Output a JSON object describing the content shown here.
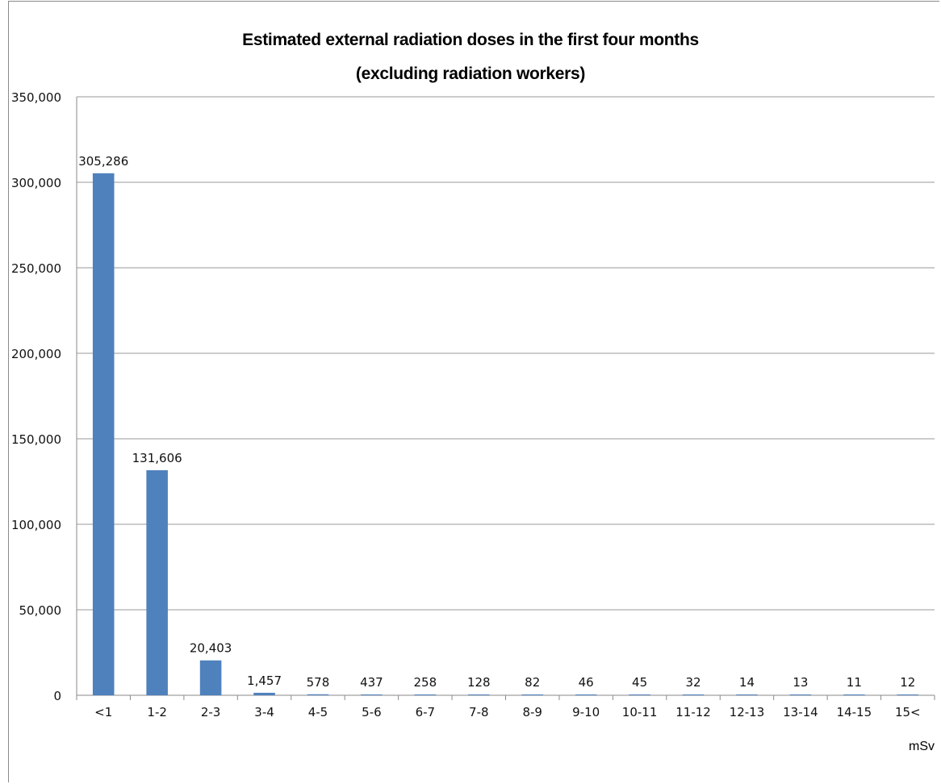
{
  "chart_data": {
    "type": "bar",
    "title": "Estimated external radiation doses in the first four months",
    "subtitle": "(excluding radiation workers)",
    "categories": [
      "<1",
      "1-2",
      "2-3",
      "3-4",
      "4-5",
      "5-6",
      "6-7",
      "7-8",
      "8-9",
      "9-10",
      "10-11",
      "11-12",
      "12-13",
      "13-14",
      "14-15",
      "15<"
    ],
    "values": [
      305286,
      131606,
      20403,
      1457,
      578,
      437,
      258,
      128,
      82,
      46,
      45,
      32,
      14,
      13,
      11,
      12
    ],
    "data_labels": [
      "305,286",
      "131,606",
      "20,403",
      "1,457",
      "578",
      "437",
      "258",
      "128",
      "82",
      "46",
      "45",
      "32",
      "14",
      "13",
      "11",
      "12"
    ],
    "y_ticks": [
      "0",
      "50,000",
      "100,000",
      "150,000",
      "200,000",
      "250,000",
      "300,000",
      "350,000"
    ],
    "y_tick_values": [
      0,
      50000,
      100000,
      150000,
      200000,
      250000,
      300000,
      350000
    ],
    "xlabel": "mSv",
    "ylabel": "",
    "ylim": [
      0,
      350000
    ],
    "grid": true,
    "legend": "none",
    "bar_color": "#4f81bd",
    "grid_color": "#9a9a9a"
  }
}
